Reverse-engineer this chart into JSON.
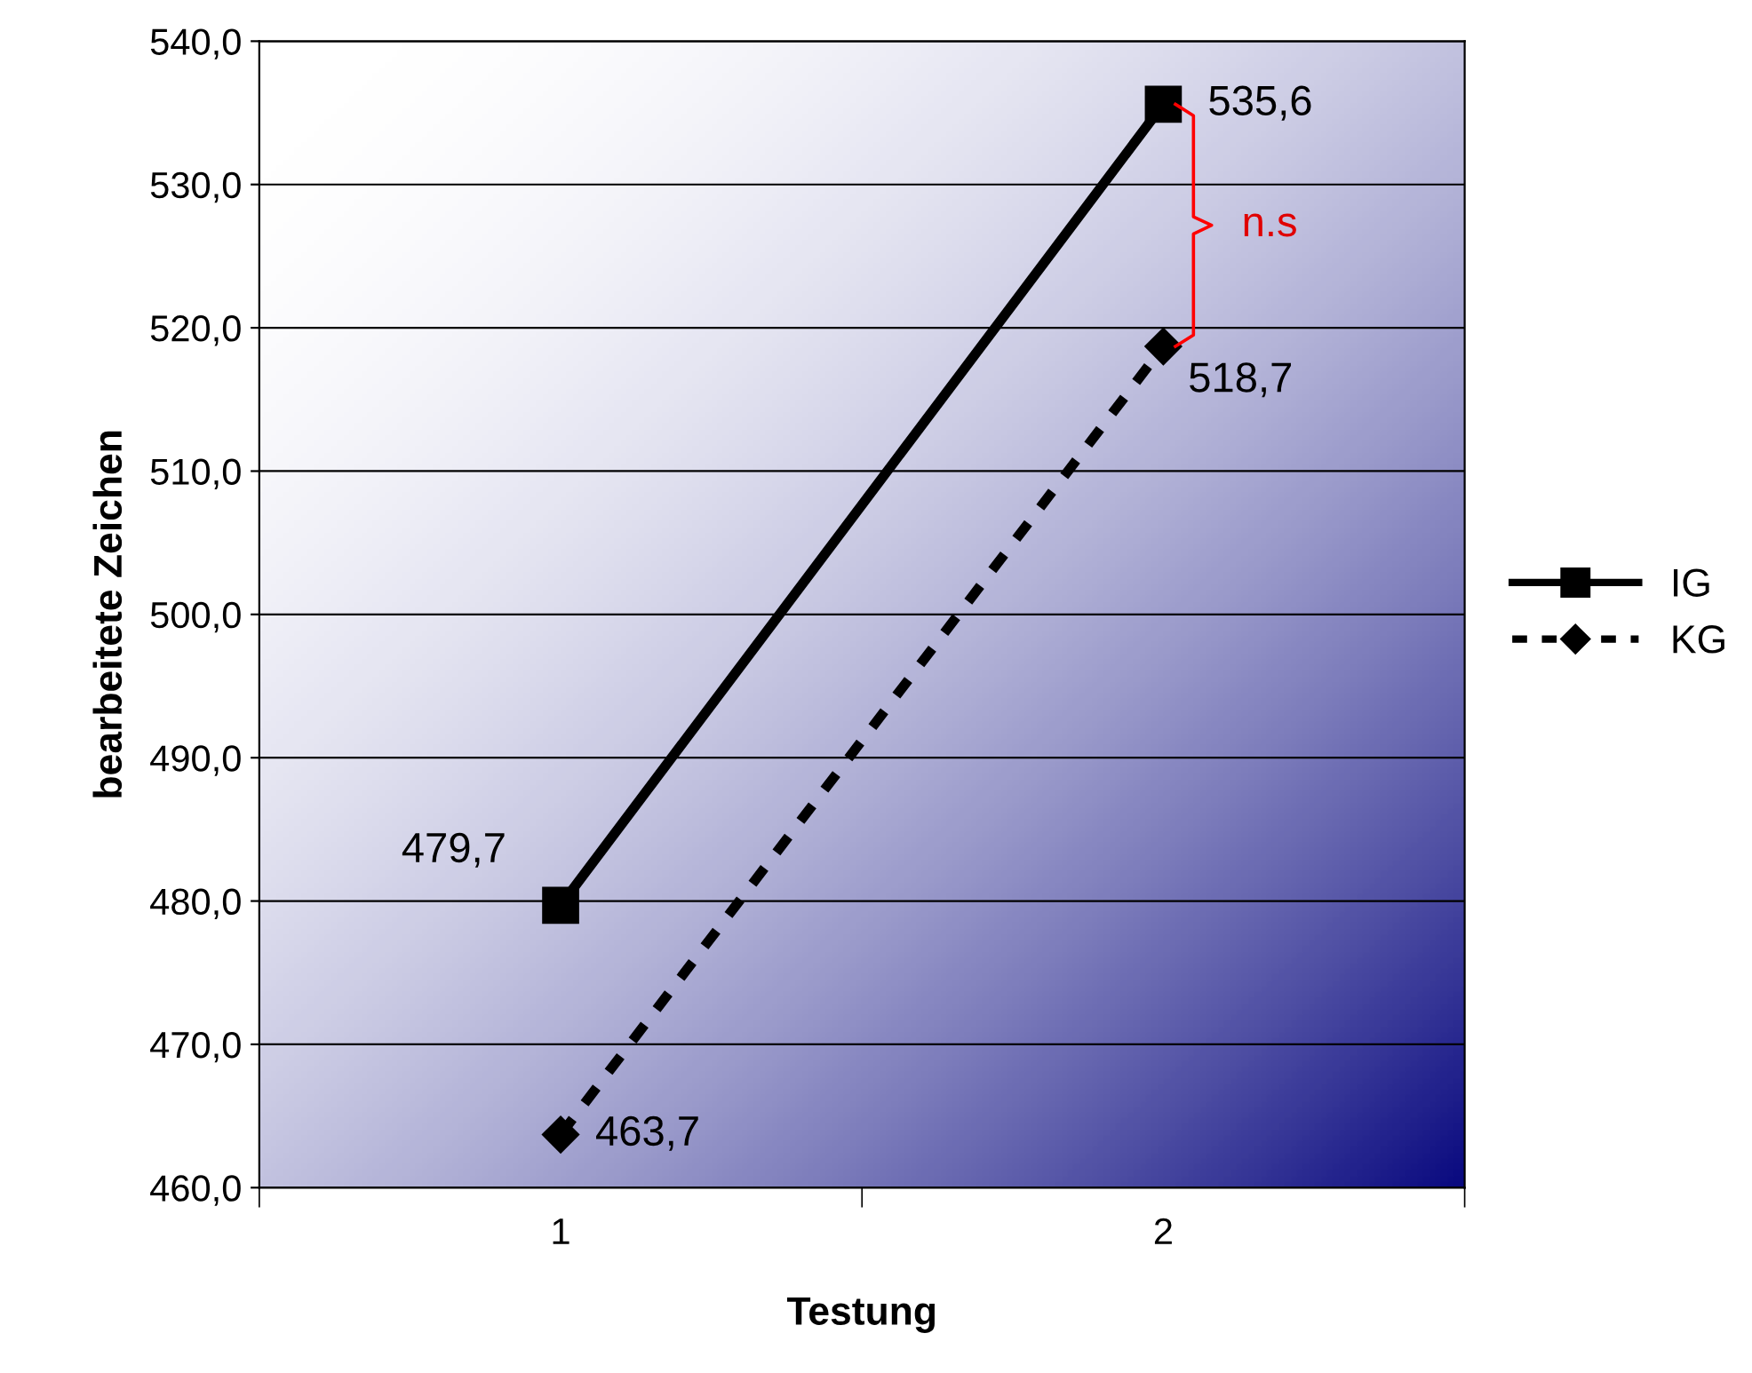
{
  "chart_data": {
    "type": "line",
    "xlabel": "Testung",
    "ylabel": "bearbeitete Zeichen",
    "categories": [
      "1",
      "2"
    ],
    "series": [
      {
        "name": "IG",
        "color": "#000000",
        "values": [
          479.7,
          535.6
        ],
        "value_labels": [
          "479,7",
          "535,6"
        ],
        "marker": "square",
        "line_style": "solid"
      },
      {
        "name": "KG",
        "color": "#000000",
        "values": [
          463.7,
          518.7
        ],
        "value_labels": [
          "463,7",
          "518,7"
        ],
        "marker": "diamond",
        "line_style": "dashed"
      }
    ],
    "ylim": [
      460,
      540
    ],
    "yticks": [
      {
        "value": 460,
        "label": "460,0"
      },
      {
        "value": 470,
        "label": "470,0"
      },
      {
        "value": 480,
        "label": "480,0"
      },
      {
        "value": 490,
        "label": "490,0"
      },
      {
        "value": 500,
        "label": "500,0"
      },
      {
        "value": 510,
        "label": "510,0"
      },
      {
        "value": 520,
        "label": "520,0"
      },
      {
        "value": 530,
        "label": "530,0"
      },
      {
        "value": 540,
        "label": "540,0"
      }
    ],
    "grid": "y",
    "legend": "right",
    "annotations": [
      "n.s"
    ]
  }
}
